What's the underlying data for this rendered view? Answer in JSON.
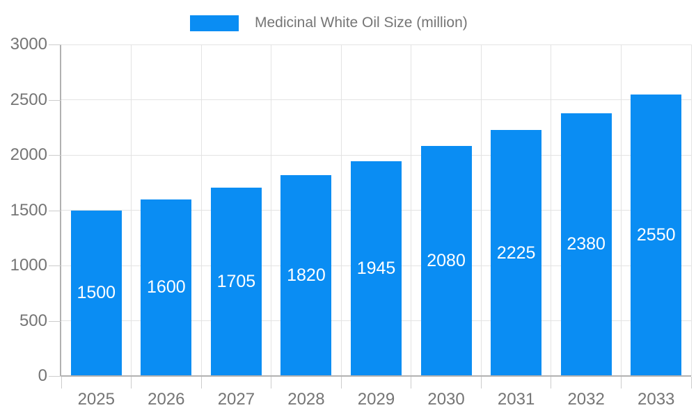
{
  "chart_data": {
    "type": "bar",
    "title": "",
    "legend_position": "top",
    "categories": [
      "2025",
      "2026",
      "2027",
      "2028",
      "2029",
      "2030",
      "2031",
      "2032",
      "2033"
    ],
    "series": [
      {
        "name": "Medicinal White Oil Size (million)",
        "values": [
          1500,
          1600,
          1705,
          1820,
          1945,
          2080,
          2225,
          2380,
          2550
        ],
        "color": "#0a8df3"
      }
    ],
    "xlabel": "",
    "ylabel": "",
    "ylim": [
      0,
      3000
    ],
    "yticks": [
      0,
      500,
      1000,
      1500,
      2000,
      2500,
      3000
    ],
    "grid": true,
    "bar_label_color": "#ffffff",
    "axis_text_color": "#757575",
    "gridline_color": "#e3e3e3",
    "axis_line_color": "#b1b1b1",
    "tick_color": "#cccccc"
  }
}
